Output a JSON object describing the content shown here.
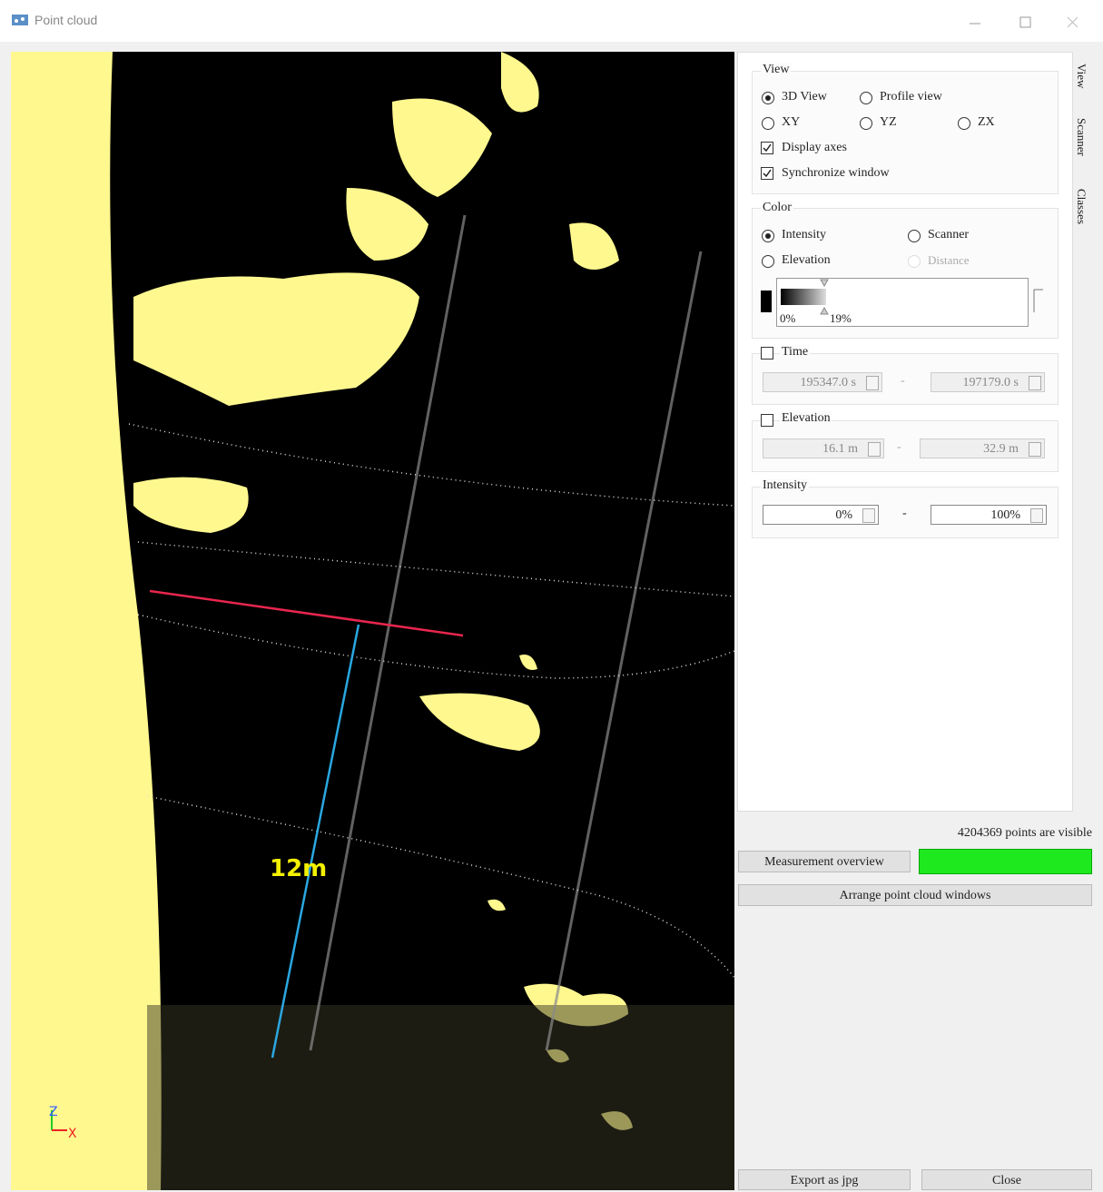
{
  "window": {
    "title": "Point cloud"
  },
  "viewer": {
    "measurement_label": "12m",
    "axis_z": "Z",
    "axis_x": "X"
  },
  "tabs": [
    "View",
    "Scanner",
    "Classes"
  ],
  "view_group": {
    "title": "View",
    "options": [
      "3D View",
      "Profile view",
      "XY",
      "YZ",
      "ZX"
    ],
    "display_axes": "Display axes",
    "synchronize_window": "Synchronize window"
  },
  "color_group": {
    "title": "Color",
    "options": [
      "Intensity",
      "Scanner",
      "Elevation",
      "Distance"
    ],
    "gradient_low": "0%",
    "gradient_high": "19%"
  },
  "time_group": {
    "title": "Time",
    "from": "195347.0 s",
    "to": "197179.0 s"
  },
  "elevation_group": {
    "title": "Elevation",
    "from": "16.1 m",
    "to": "32.9 m"
  },
  "intensity_group": {
    "title": "Intensity",
    "from": "0%",
    "to": "100%"
  },
  "range_separator": "-",
  "status": "4204369 points are visible",
  "buttons": {
    "measurement_overview": "Measurement overview",
    "arrange": "Arrange point cloud windows",
    "export": "Export as jpg",
    "close": "Close"
  }
}
